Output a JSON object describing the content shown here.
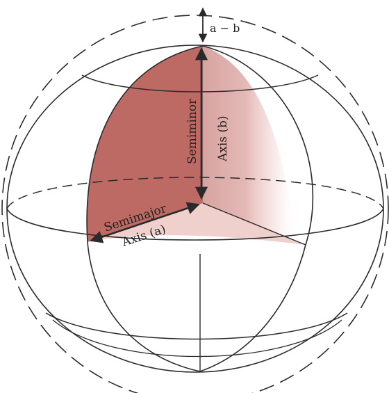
{
  "labels": {
    "difference": "a − b",
    "semiminor_line1": "Semiminor",
    "semiminor_line2": "Axis (b)",
    "semimajor_line1": "Semimajor",
    "semimajor_line2": "Axis (a)"
  },
  "colors": {
    "shaded_wedge": "#b2504a",
    "line": "#2a2a2a",
    "background": "#ffffff"
  }
}
